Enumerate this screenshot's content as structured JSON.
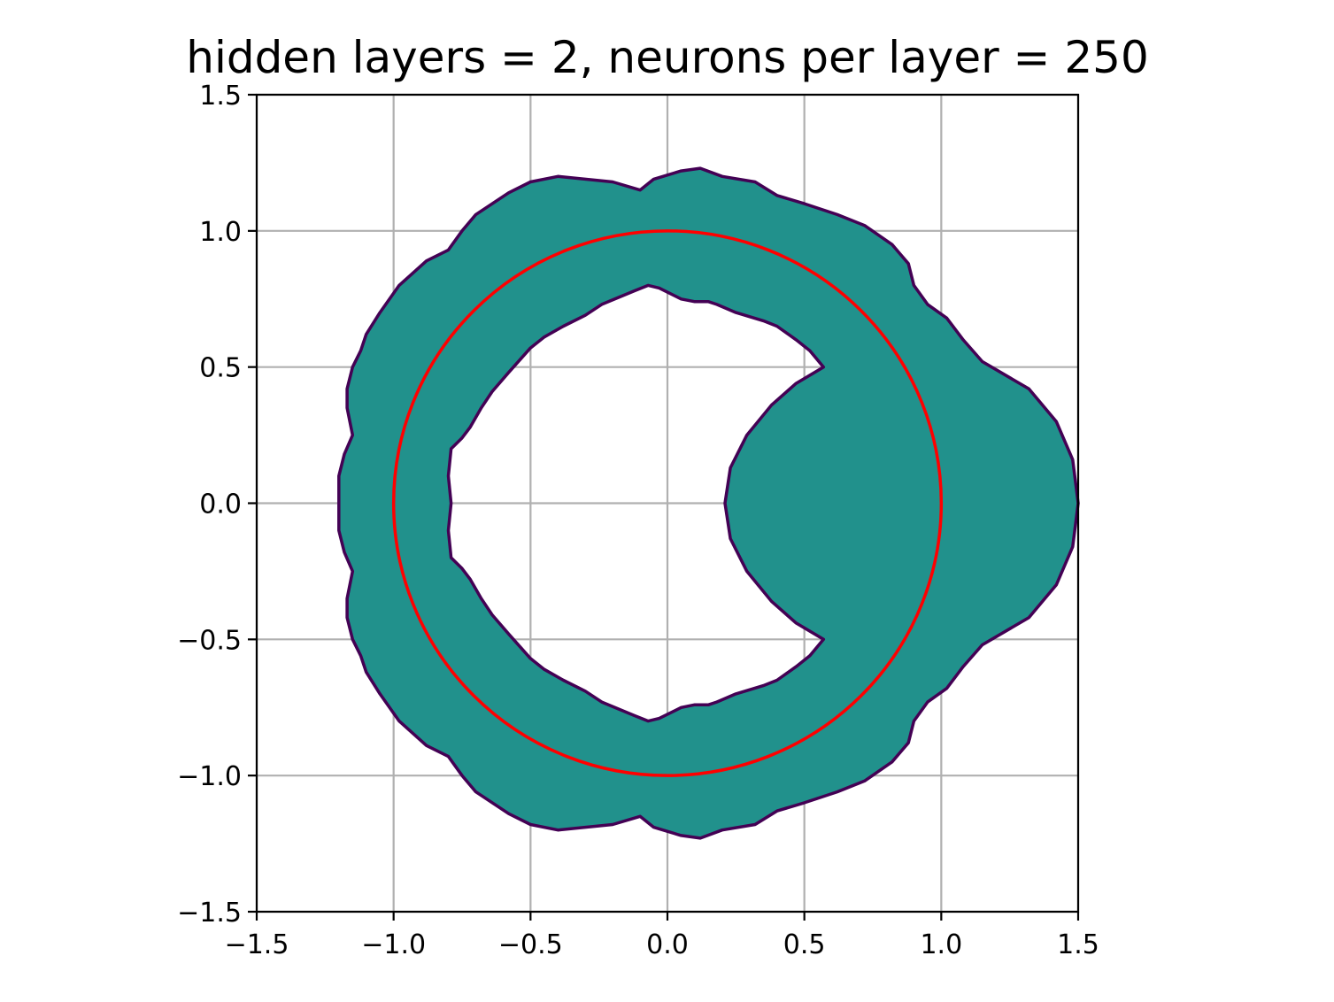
{
  "chart_data": {
    "type": "contour",
    "title": "hidden layers = 2, neurons per layer = 250",
    "xlabel": "",
    "ylabel": "",
    "xlim": [
      -1.5,
      1.5
    ],
    "ylim": [
      -1.5,
      1.5
    ],
    "grid": true,
    "x_ticks": [
      -1.5,
      -1.0,
      -0.5,
      0.0,
      0.5,
      1.0,
      1.5
    ],
    "y_ticks": [
      -1.5,
      -1.0,
      -0.5,
      0.0,
      0.5,
      1.0,
      1.5
    ],
    "x_tick_labels": [
      "−1.5",
      "−1.0",
      "−0.5",
      "0.0",
      "0.5",
      "1.0",
      "1.5"
    ],
    "y_tick_labels": [
      "−1.5",
      "−1.0",
      "−0.5",
      "0.0",
      "0.5",
      "1.0",
      "1.5"
    ],
    "colors": {
      "fill": "#21918c",
      "boundary": "#440154",
      "circle": "#ff0000",
      "grid": "#b0b0b0"
    },
    "reference_circle": {
      "cx": 0,
      "cy": 0,
      "r": 1.0,
      "color": "#ff0000"
    },
    "region_outer_boundary": [
      [
        1.5,
        0.0
      ],
      [
        1.48,
        0.16
      ],
      [
        1.42,
        0.3
      ],
      [
        1.32,
        0.42
      ],
      [
        1.15,
        0.52
      ],
      [
        1.08,
        0.6
      ],
      [
        1.02,
        0.68
      ],
      [
        0.95,
        0.73
      ],
      [
        0.9,
        0.8
      ],
      [
        0.88,
        0.88
      ],
      [
        0.82,
        0.95
      ],
      [
        0.72,
        1.02
      ],
      [
        0.62,
        1.06
      ],
      [
        0.5,
        1.1
      ],
      [
        0.4,
        1.13
      ],
      [
        0.32,
        1.18
      ],
      [
        0.2,
        1.2
      ],
      [
        0.12,
        1.23
      ],
      [
        0.05,
        1.22
      ],
      [
        -0.05,
        1.19
      ],
      [
        -0.1,
        1.15
      ],
      [
        -0.2,
        1.18
      ],
      [
        -0.4,
        1.2
      ],
      [
        -0.5,
        1.18
      ],
      [
        -0.58,
        1.14
      ],
      [
        -0.7,
        1.06
      ],
      [
        -0.75,
        1.0
      ],
      [
        -0.8,
        0.93
      ],
      [
        -0.88,
        0.89
      ],
      [
        -0.98,
        0.8
      ],
      [
        -1.05,
        0.7
      ],
      [
        -1.1,
        0.62
      ],
      [
        -1.12,
        0.56
      ],
      [
        -1.15,
        0.5
      ],
      [
        -1.17,
        0.42
      ],
      [
        -1.17,
        0.35
      ],
      [
        -1.15,
        0.25
      ],
      [
        -1.18,
        0.18
      ],
      [
        -1.2,
        0.1
      ],
      [
        -1.2,
        0.0
      ],
      [
        -1.2,
        -0.1
      ],
      [
        -1.18,
        -0.18
      ],
      [
        -1.15,
        -0.25
      ],
      [
        -1.17,
        -0.35
      ],
      [
        -1.17,
        -0.42
      ],
      [
        -1.15,
        -0.5
      ],
      [
        -1.12,
        -0.56
      ],
      [
        -1.1,
        -0.62
      ],
      [
        -1.05,
        -0.7
      ],
      [
        -0.98,
        -0.8
      ],
      [
        -0.88,
        -0.89
      ],
      [
        -0.8,
        -0.93
      ],
      [
        -0.75,
        -1.0
      ],
      [
        -0.7,
        -1.06
      ],
      [
        -0.58,
        -1.14
      ],
      [
        -0.5,
        -1.18
      ],
      [
        -0.4,
        -1.2
      ],
      [
        -0.2,
        -1.18
      ],
      [
        -0.1,
        -1.15
      ],
      [
        -0.05,
        -1.19
      ],
      [
        0.05,
        -1.22
      ],
      [
        0.12,
        -1.23
      ],
      [
        0.2,
        -1.2
      ],
      [
        0.32,
        -1.18
      ],
      [
        0.4,
        -1.13
      ],
      [
        0.5,
        -1.1
      ],
      [
        0.62,
        -1.06
      ],
      [
        0.72,
        -1.02
      ],
      [
        0.82,
        -0.95
      ],
      [
        0.88,
        -0.88
      ],
      [
        0.9,
        -0.8
      ],
      [
        0.95,
        -0.73
      ],
      [
        1.02,
        -0.68
      ],
      [
        1.08,
        -0.6
      ],
      [
        1.15,
        -0.52
      ],
      [
        1.32,
        -0.42
      ],
      [
        1.42,
        -0.3
      ],
      [
        1.48,
        -0.16
      ]
    ],
    "region_inner_boundary": [
      [
        0.57,
        0.5
      ],
      [
        0.47,
        0.44
      ],
      [
        0.38,
        0.36
      ],
      [
        0.29,
        0.25
      ],
      [
        0.23,
        0.13
      ],
      [
        0.21,
        0.0
      ],
      [
        0.23,
        -0.13
      ],
      [
        0.29,
        -0.25
      ],
      [
        0.38,
        -0.36
      ],
      [
        0.47,
        -0.44
      ],
      [
        0.57,
        -0.5
      ],
      [
        0.52,
        -0.56
      ],
      [
        0.47,
        -0.6
      ],
      [
        0.4,
        -0.65
      ],
      [
        0.35,
        -0.67
      ],
      [
        0.25,
        -0.7
      ],
      [
        0.18,
        -0.73
      ],
      [
        0.15,
        -0.74
      ],
      [
        0.1,
        -0.74
      ],
      [
        0.05,
        -0.75
      ],
      [
        -0.03,
        -0.79
      ],
      [
        -0.07,
        -0.8
      ],
      [
        -0.12,
        -0.78
      ],
      [
        -0.24,
        -0.73
      ],
      [
        -0.3,
        -0.69
      ],
      [
        -0.38,
        -0.65
      ],
      [
        -0.45,
        -0.61
      ],
      [
        -0.5,
        -0.57
      ],
      [
        -0.58,
        -0.48
      ],
      [
        -0.64,
        -0.41
      ],
      [
        -0.68,
        -0.35
      ],
      [
        -0.72,
        -0.28
      ],
      [
        -0.75,
        -0.24
      ],
      [
        -0.79,
        -0.2
      ],
      [
        -0.8,
        -0.1
      ],
      [
        -0.79,
        0.0
      ],
      [
        -0.8,
        0.1
      ],
      [
        -0.79,
        0.2
      ],
      [
        -0.75,
        0.24
      ],
      [
        -0.72,
        0.28
      ],
      [
        -0.68,
        0.35
      ],
      [
        -0.64,
        0.41
      ],
      [
        -0.58,
        0.48
      ],
      [
        -0.5,
        0.57
      ],
      [
        -0.45,
        0.61
      ],
      [
        -0.38,
        0.65
      ],
      [
        -0.3,
        0.69
      ],
      [
        -0.24,
        0.73
      ],
      [
        -0.12,
        0.78
      ],
      [
        -0.07,
        0.8
      ],
      [
        -0.03,
        0.79
      ],
      [
        0.05,
        0.75
      ],
      [
        0.1,
        0.74
      ],
      [
        0.15,
        0.74
      ],
      [
        0.18,
        0.73
      ],
      [
        0.25,
        0.7
      ],
      [
        0.35,
        0.67
      ],
      [
        0.4,
        0.65
      ],
      [
        0.47,
        0.6
      ],
      [
        0.52,
        0.56
      ]
    ]
  }
}
